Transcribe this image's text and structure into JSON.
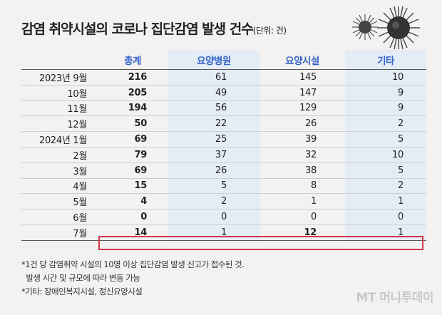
{
  "title": {
    "main": "감염 취약시설의 코로나 집단감염 발생 건수",
    "unit": "(단위: 건)"
  },
  "chart_data": {
    "type": "table",
    "columns": [
      "",
      "총계",
      "요양병원",
      "요양시설",
      "기타"
    ],
    "rows": [
      {
        "label": "2023년 9월",
        "values": [
          216,
          61,
          145,
          10
        ]
      },
      {
        "label": "10월",
        "values": [
          205,
          49,
          147,
          9
        ]
      },
      {
        "label": "11월",
        "values": [
          194,
          56,
          129,
          9
        ]
      },
      {
        "label": "12월",
        "values": [
          50,
          22,
          26,
          2
        ]
      },
      {
        "label": "2024년 1월",
        "values": [
          69,
          25,
          39,
          5
        ]
      },
      {
        "label": "2월",
        "values": [
          79,
          37,
          32,
          10
        ]
      },
      {
        "label": "3월",
        "values": [
          69,
          26,
          38,
          5
        ]
      },
      {
        "label": "4월",
        "values": [
          15,
          5,
          8,
          2
        ]
      },
      {
        "label": "5월",
        "values": [
          4,
          2,
          1,
          1
        ]
      },
      {
        "label": "6월",
        "values": [
          0,
          0,
          0,
          0
        ]
      },
      {
        "label": "7월",
        "values": [
          14,
          1,
          12,
          1
        ]
      }
    ],
    "highlight_row": "7월"
  },
  "notes": [
    "*1건 당 감염취약 시설의 10명 이상 집단감염 발생 신고가 접수된 것.",
    "  발생 시간 및 규모에 따라 변동 가능",
    "*기타: 장애인복지시설, 정신요양시설"
  ],
  "logo": "MT 머니투데이",
  "colors": {
    "header_text": "#3563c9",
    "band": "#e4ecf5",
    "highlight": "#d0384a",
    "background": "#f3f2f0"
  },
  "icons": [
    "virus-icon",
    "virus-icon"
  ]
}
